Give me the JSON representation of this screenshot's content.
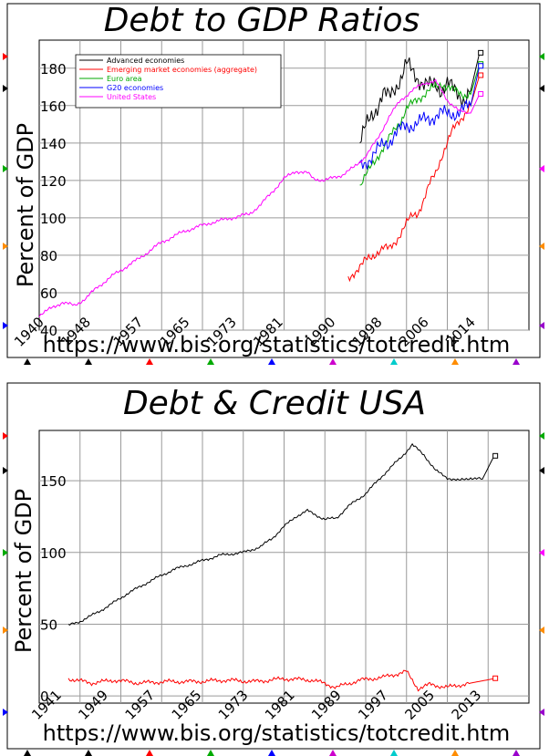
{
  "chart_data": [
    {
      "type": "line",
      "title": "Debt to GDP Ratios",
      "ylabel": "Percent of GDP",
      "source": "https://www.bis.org/statistics/totcredit.htm",
      "xlim": [
        1940,
        2024
      ],
      "ylim": [
        40,
        195
      ],
      "yticks": [
        40,
        60,
        80,
        100,
        120,
        140,
        160,
        180
      ],
      "xticks": [
        1940,
        1948,
        1957,
        1965,
        1973,
        1981,
        1990,
        1998,
        2006,
        2014
      ],
      "grid": true,
      "legend": "top-left",
      "series": [
        {
          "name": "Advanced economies",
          "color": "#000000",
          "noise": 6,
          "x": [
            1995,
            1996,
            1997,
            1998,
            1999,
            2000,
            2001,
            2002,
            2003,
            2004,
            2005,
            2006,
            2007,
            2008,
            2009,
            2010,
            2011,
            2012,
            2013,
            2014,
            2015.5
          ],
          "values": [
            140,
            148,
            155,
            160,
            166,
            164,
            170,
            175,
            182,
            178,
            175,
            172,
            170,
            171,
            169,
            172,
            168,
            166,
            164,
            168,
            188
          ]
        },
        {
          "name": "Emerging market economies (aggregate)",
          "color": "#ff0000",
          "noise": 3,
          "x": [
            1993,
            1994,
            1995,
            1996,
            1997,
            1998,
            1999,
            2000,
            2001,
            2002,
            2003,
            2004,
            2005,
            2006,
            2007,
            2008,
            2009,
            2010,
            2011,
            2012,
            2013,
            2014,
            2015.5
          ],
          "values": [
            67,
            71,
            74,
            77,
            79,
            82,
            84,
            83,
            87,
            92,
            97,
            101,
            103,
            110,
            118,
            124,
            133,
            140,
            147,
            152,
            156,
            160,
            176
          ]
        },
        {
          "name": "Euro area",
          "color": "#00aa00",
          "noise": 3,
          "x": [
            1995,
            1996,
            1997,
            1998,
            1999,
            2000,
            2001,
            2002,
            2003,
            2004,
            2005,
            2006,
            2007,
            2008,
            2009,
            2010,
            2011,
            2012,
            2013,
            2014,
            2015.5
          ],
          "values": [
            117,
            122,
            128,
            133,
            137,
            142,
            148,
            152,
            158,
            161,
            164,
            166,
            168,
            170,
            172,
            170,
            168,
            167,
            166,
            166,
            182
          ]
        },
        {
          "name": "G20 economies",
          "color": "#0000ff",
          "noise": 5,
          "x": [
            1995,
            1996,
            1997,
            1998,
            1999,
            2000,
            2001,
            2002,
            2003,
            2004,
            2005,
            2006,
            2007,
            2008,
            2009,
            2010,
            2011,
            2012,
            2013,
            2014,
            2015.5
          ],
          "values": [
            127,
            130,
            133,
            136,
            139,
            141,
            145,
            147,
            149,
            150,
            151,
            152,
            153,
            155,
            156,
            155,
            156,
            157,
            158,
            160,
            181
          ]
        },
        {
          "name": "United States",
          "color": "#ff00ff",
          "noise": 1.2,
          "x": [
            1940,
            1944,
            1946,
            1948,
            1950,
            1953,
            1957,
            1961,
            1965,
            1969,
            1973,
            1976,
            1978,
            1980,
            1982,
            1984,
            1986,
            1987,
            1989,
            1990,
            1992,
            1994,
            1996,
            1998,
            2000,
            2002,
            2004,
            2006,
            2008,
            2009,
            2010,
            2012,
            2014,
            2015.5
          ],
          "values": [
            48,
            55,
            53,
            57,
            63,
            70,
            78,
            87,
            93,
            97,
            100,
            102,
            107,
            114,
            121,
            125,
            124,
            121,
            120,
            121,
            123,
            127,
            133,
            142,
            154,
            163,
            168,
            172,
            173,
            168,
            163,
            157,
            156,
            166
          ]
        }
      ]
    },
    {
      "type": "line",
      "title": "Debt & Credit USA",
      "ylabel": "Percent of GDP",
      "source": "https://www.bis.org/statistics/totcredit.htm",
      "xlim": [
        1938,
        2022
      ],
      "ylim": [
        -5,
        185
      ],
      "yticks": [
        0,
        50,
        100,
        150
      ],
      "xticks": [
        1941,
        1949,
        1957,
        1965,
        1973,
        1981,
        1989,
        1997,
        2005,
        2013
      ],
      "grid": true,
      "legend": "none",
      "series": [
        {
          "color": "#000000",
          "noise": 1.2,
          "x": [
            1943,
            1945,
            1947,
            1950,
            1953,
            1957,
            1961,
            1965,
            1969,
            1973,
            1976,
            1978,
            1980,
            1982,
            1984,
            1985,
            1987,
            1989,
            1991,
            1994,
            1997,
            2000,
            2002,
            2004,
            2006,
            2008,
            2010,
            2012,
            2014,
            2016
          ],
          "values": [
            49,
            52,
            56,
            63,
            71,
            80,
            88,
            93,
            98,
            100,
            104,
            110,
            118,
            125,
            129,
            127,
            123,
            124,
            132,
            141,
            154,
            166,
            175,
            168,
            157,
            152,
            150,
            152,
            151,
            167
          ]
        },
        {
          "color": "#ff0000",
          "noise": 1.8,
          "x": [
            1943,
            1947,
            1951,
            1955,
            1960,
            1965,
            1970,
            1975,
            1980,
            1985,
            1989,
            1993,
            1997,
            2001,
            2003,
            2005,
            2008,
            2012,
            2016
          ],
          "values": [
            12,
            9,
            11,
            9,
            10,
            10,
            11,
            10,
            12,
            11,
            6,
            11,
            13,
            17,
            5,
            8,
            6,
            9,
            12
          ]
        }
      ]
    }
  ]
}
